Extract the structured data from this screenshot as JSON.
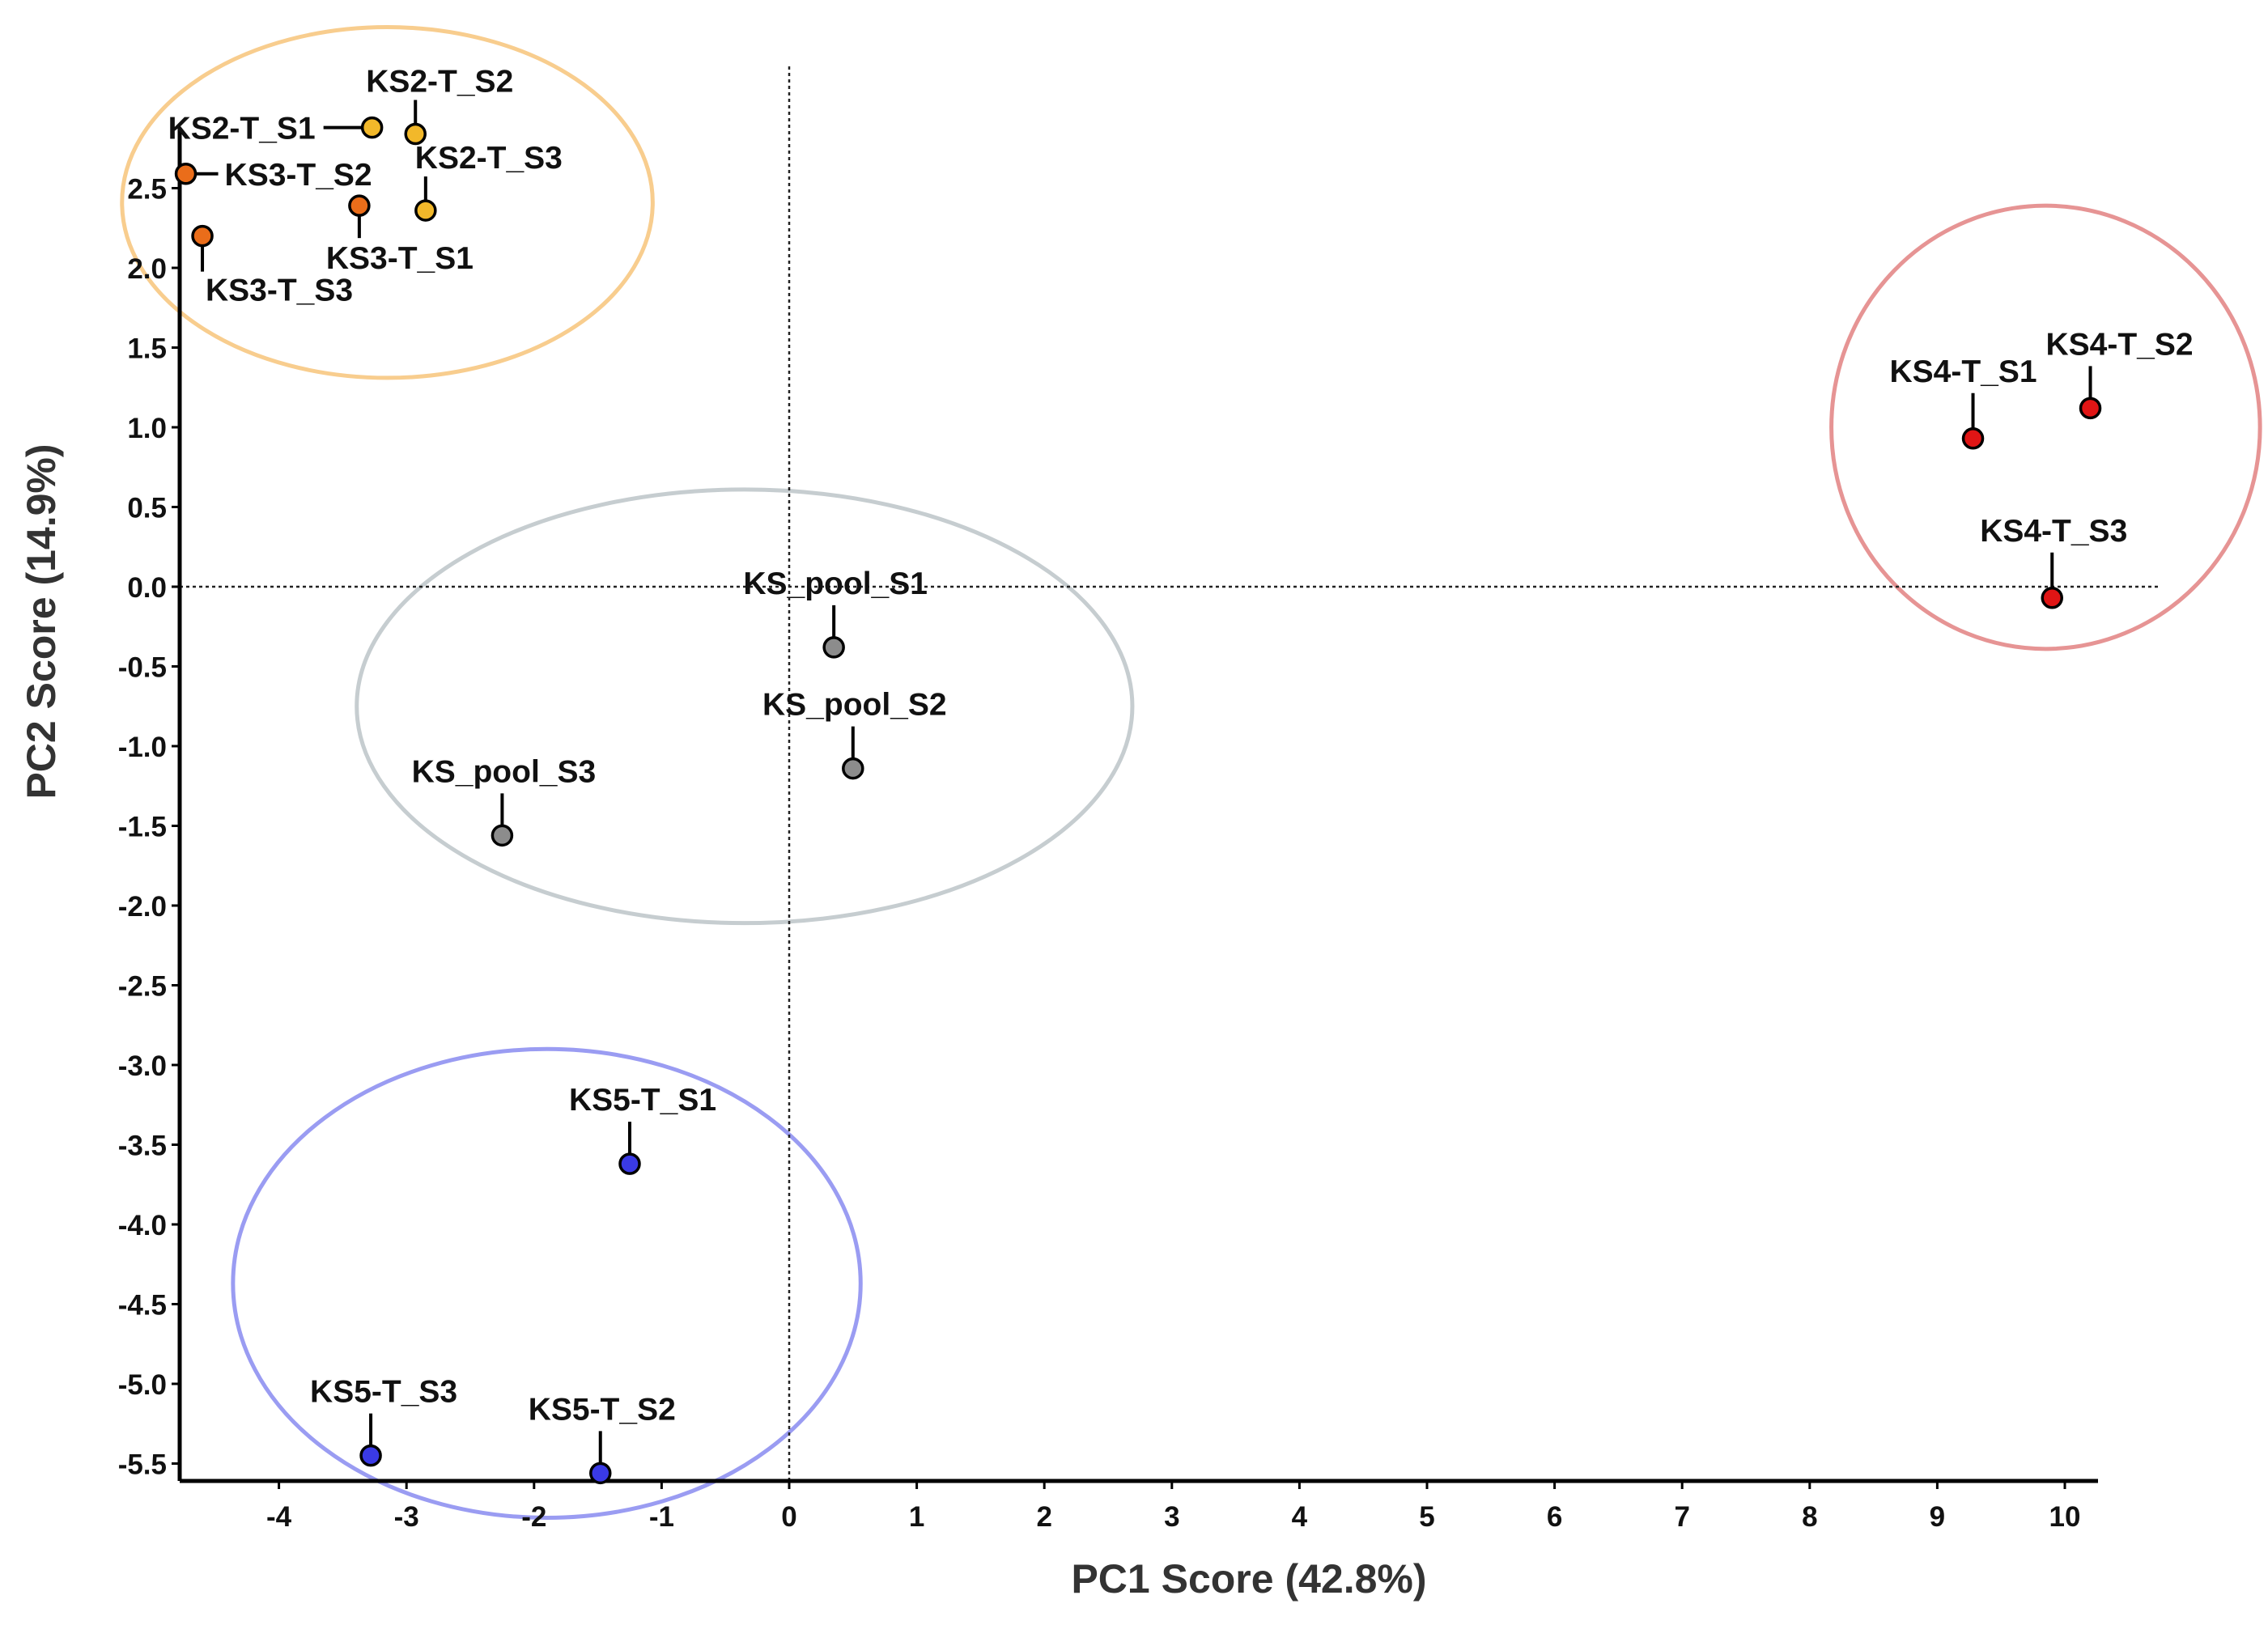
{
  "chart_data": {
    "type": "scatter",
    "title": "",
    "xlabel": "PC1 Score (42.8%)",
    "ylabel": "PC2 Score (14.9%)",
    "xlim": [
      -4.8,
      10.25
    ],
    "ylim": [
      -5.6,
      2.9
    ],
    "xticks": [
      -4,
      -3,
      -2,
      -1,
      0,
      1,
      2,
      3,
      4,
      5,
      6,
      7,
      8,
      9,
      10
    ],
    "yticks": [
      2.5,
      2.0,
      1.5,
      1.0,
      0.5,
      0.0,
      -0.5,
      -1.0,
      -1.5,
      -2.0,
      -2.5,
      -3.0,
      -3.5,
      -4.0,
      -4.5,
      -5.0,
      -5.5
    ],
    "ytick_labels": [
      "2.5",
      "2.0",
      "1.5",
      "1.0",
      "0.5",
      "0.0",
      "-0.5",
      "-1.0",
      "-1.5",
      "-2.0",
      "-2.5",
      "-3.0",
      "-3.5",
      "-4.0",
      "-4.5",
      "-5.0",
      "-5.5"
    ],
    "reference_lines": {
      "x": 0,
      "y": 0,
      "style": "dotted"
    },
    "colors": {
      "KS2": "#f2b82a",
      "KS3": "#ea6d1a",
      "KS4": "#e01515",
      "KS5": "#3a3ae6",
      "KS_pool": "#8c8c8c"
    },
    "points": [
      {
        "id": "ks2-t-s1",
        "label": "KS2-T_S1",
        "group": "KS2",
        "x": -3.27,
        "y": 2.88
      },
      {
        "id": "ks2-t-s2",
        "label": "KS2-T_S2",
        "group": "KS2",
        "x": -2.93,
        "y": 2.84
      },
      {
        "id": "ks2-t-s3",
        "label": "KS2-T_S3",
        "group": "KS2",
        "x": -2.85,
        "y": 2.36
      },
      {
        "id": "ks3-t-s1",
        "label": "KS3-T_S1",
        "group": "KS3",
        "x": -3.37,
        "y": 2.39
      },
      {
        "id": "ks3-t-s2",
        "label": "KS3-T_S2",
        "group": "KS3",
        "x": -4.73,
        "y": 2.59
      },
      {
        "id": "ks3-t-s3",
        "label": "KS3-T_S3",
        "group": "KS3",
        "x": -4.6,
        "y": 2.2
      },
      {
        "id": "ks4-t-s1",
        "label": "KS4-T_S1",
        "group": "KS4",
        "x": 9.28,
        "y": 0.93
      },
      {
        "id": "ks4-t-s2",
        "label": "KS4-T_S2",
        "group": "KS4",
        "x": 10.2,
        "y": 1.12
      },
      {
        "id": "ks4-t-s3",
        "label": "KS4-T_S3",
        "group": "KS4",
        "x": 9.9,
        "y": -0.07
      },
      {
        "id": "ks-pool-s1",
        "label": "KS_pool_S1",
        "group": "KS_pool",
        "x": 0.35,
        "y": -0.38
      },
      {
        "id": "ks-pool-s2",
        "label": "KS_pool_S2",
        "group": "KS_pool",
        "x": 0.5,
        "y": -1.14
      },
      {
        "id": "ks-pool-s3",
        "label": "KS_pool_S3",
        "group": "KS_pool",
        "x": -2.25,
        "y": -1.56
      },
      {
        "id": "ks5-t-s1",
        "label": "KS5-T_S1",
        "group": "KS5",
        "x": -1.25,
        "y": -3.62
      },
      {
        "id": "ks5-t-s2",
        "label": "KS5-T_S2",
        "group": "KS5",
        "x": -1.48,
        "y": -5.56
      },
      {
        "id": "ks5-t-s3",
        "label": "KS5-T_S3",
        "group": "KS5",
        "x": -3.28,
        "y": -5.45
      }
    ],
    "group_ellipses": [
      {
        "id": "ellipse-ks2-ks3",
        "color": "#f8cd8e",
        "cx": -3.15,
        "cy": 2.41,
        "rx": 2.08,
        "ry": 1.1
      },
      {
        "id": "ellipse-pool",
        "color": "#c6cdd0",
        "cx": -0.35,
        "cy": -0.75,
        "rx": 3.04,
        "ry": 1.36
      },
      {
        "id": "ellipse-ks4",
        "color": "#e69494",
        "cx": 9.85,
        "cy": 1.0,
        "rx": 1.68,
        "ry": 1.39
      },
      {
        "id": "ellipse-ks5",
        "color": "#9a9cf2",
        "cx": -1.9,
        "cy": -4.37,
        "rx": 2.46,
        "ry": 1.47
      }
    ]
  }
}
